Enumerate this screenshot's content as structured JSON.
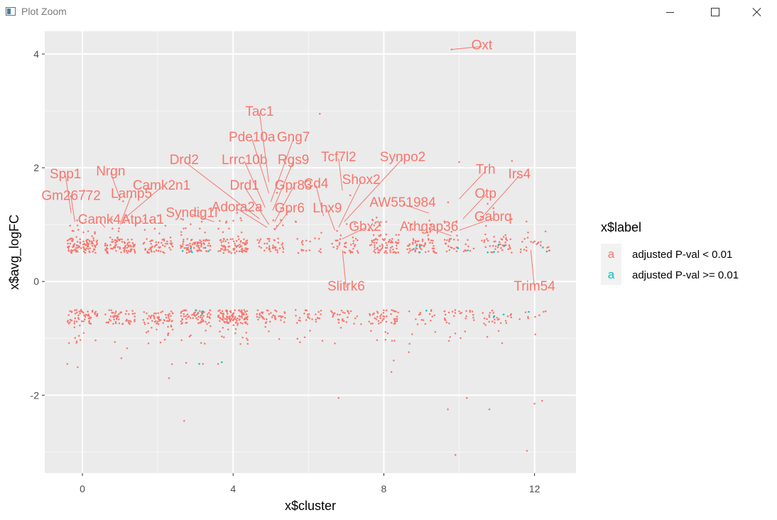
{
  "window": {
    "title": "Plot Zoom",
    "icon": "plot-window-icon",
    "controls": {
      "minimize_icon": "minimize-icon",
      "maximize_icon": "maximize-icon",
      "close_icon": "close-icon"
    }
  },
  "chart_data": {
    "type": "scatter",
    "title": "",
    "xlabel": "x$cluster",
    "ylabel": "x$avg_logFC",
    "xlim": [
      -1.0,
      13.1
    ],
    "ylim": [
      -3.37,
      4.4
    ],
    "xticks": [
      0,
      4,
      8,
      12
    ],
    "xtick_labels": [
      "0",
      "4",
      "8",
      "12"
    ],
    "yticks": [
      -2,
      0,
      2,
      4
    ],
    "ytick_labels": [
      "-2",
      "0",
      "2",
      "4"
    ],
    "grid": true,
    "panel_background": "#ebebeb",
    "legend": {
      "title": "x$label",
      "placement": "right",
      "entries": [
        {
          "name": "adjusted P-val < 0.01",
          "color": "#f8766d",
          "key_glyph": "a"
        },
        {
          "name": "adjusted P-val >= 0.01",
          "color": "#00bfc4",
          "key_glyph": "a"
        }
      ]
    },
    "series": [
      {
        "name": "adjusted P-val < 0.01",
        "color": "#f8766d"
      },
      {
        "name": "adjusted P-val >= 0.01",
        "color": "#00bfc4"
      }
    ],
    "gene_labels": [
      {
        "text": "Oxt",
        "x": 10.6,
        "y": 4.17,
        "point": [
          9.8,
          4.08
        ]
      },
      {
        "text": "Tac1",
        "x": 4.7,
        "y": 3.0,
        "point": [
          4.95,
          1.75
        ]
      },
      {
        "text": "Pde10a",
        "x": 4.5,
        "y": 2.55,
        "point": [
          4.95,
          1.55
        ]
      },
      {
        "text": "Gng7",
        "x": 5.6,
        "y": 2.55,
        "point": [
          5.0,
          1.4
        ]
      },
      {
        "text": "Drd2",
        "x": 2.7,
        "y": 2.15,
        "point": [
          4.7,
          1.1
        ]
      },
      {
        "text": "Lrrc10b",
        "x": 4.3,
        "y": 2.15,
        "point": [
          4.85,
          1.3
        ]
      },
      {
        "text": "Rgs9",
        "x": 5.6,
        "y": 2.15,
        "point": [
          5.05,
          1.25
        ]
      },
      {
        "text": "Tcf7l2",
        "x": 6.8,
        "y": 2.2,
        "point": [
          6.9,
          1.6
        ]
      },
      {
        "text": "Synpo2",
        "x": 8.5,
        "y": 2.2,
        "point": [
          6.95,
          1.05
        ]
      },
      {
        "text": "Spp1",
        "x": -0.45,
        "y": 1.9,
        "point": [
          -0.3,
          1.2
        ]
      },
      {
        "text": "Nrgn",
        "x": 0.75,
        "y": 1.95,
        "point": [
          1.0,
          1.45
        ]
      },
      {
        "text": "Trh",
        "x": 10.7,
        "y": 1.98,
        "point": [
          10.0,
          1.45
        ]
      },
      {
        "text": "Irs4",
        "x": 11.6,
        "y": 1.9,
        "point": [
          10.5,
          1.05
        ]
      },
      {
        "text": "Shox2",
        "x": 7.4,
        "y": 1.8,
        "point": [
          6.8,
          0.95
        ]
      },
      {
        "text": "Camk2n1",
        "x": 2.1,
        "y": 1.7,
        "point": [
          1.1,
          1.1
        ]
      },
      {
        "text": "Drd1",
        "x": 4.3,
        "y": 1.7,
        "point": [
          4.95,
          1.0
        ]
      },
      {
        "text": "Gpr83",
        "x": 5.6,
        "y": 1.7,
        "point": [
          5.1,
          1.05
        ]
      },
      {
        "text": "Cd4",
        "x": 6.2,
        "y": 1.73,
        "point": [
          6.4,
          1.15
        ]
      },
      {
        "text": "Gm26772",
        "x": -0.3,
        "y": 1.52,
        "point": [
          -0.2,
          1.05
        ]
      },
      {
        "text": "Lamp5",
        "x": 1.3,
        "y": 1.56,
        "point": [
          1.0,
          1.0
        ]
      },
      {
        "text": "Otp",
        "x": 10.7,
        "y": 1.56,
        "point": [
          10.1,
          1.1
        ]
      },
      {
        "text": "AW551984",
        "x": 8.5,
        "y": 1.4,
        "point": [
          9.2,
          1.2
        ]
      },
      {
        "text": "Adora2a",
        "x": 4.1,
        "y": 1.32,
        "point": [
          4.9,
          0.95
        ]
      },
      {
        "text": "Gpr6",
        "x": 5.5,
        "y": 1.3,
        "point": [
          5.1,
          0.9
        ]
      },
      {
        "text": "Lhx9",
        "x": 6.5,
        "y": 1.3,
        "point": [
          6.7,
          0.9
        ]
      },
      {
        "text": "Syndig1l",
        "x": 2.9,
        "y": 1.22,
        "point": [
          3.5,
          1.05
        ]
      },
      {
        "text": "Gabrq",
        "x": 10.9,
        "y": 1.15,
        "point": [
          10.0,
          0.9
        ]
      },
      {
        "text": "Camk4",
        "x": 0.45,
        "y": 1.1,
        "point": [
          0.6,
          0.95
        ]
      },
      {
        "text": "Atp1a1",
        "x": 1.6,
        "y": 1.1,
        "point": [
          1.4,
          1.0
        ]
      },
      {
        "text": "Gbx2",
        "x": 7.5,
        "y": 0.98,
        "point": [
          6.9,
          0.75
        ]
      },
      {
        "text": "Arhgap36",
        "x": 9.2,
        "y": 0.98,
        "point": [
          9.8,
          0.8
        ]
      },
      {
        "text": "Slitrk6",
        "x": 7.0,
        "y": -0.07,
        "point": [
          6.9,
          0.55
        ]
      },
      {
        "text": "Trim54",
        "x": 12.0,
        "y": -0.07,
        "point": [
          11.9,
          0.55
        ]
      }
    ]
  }
}
